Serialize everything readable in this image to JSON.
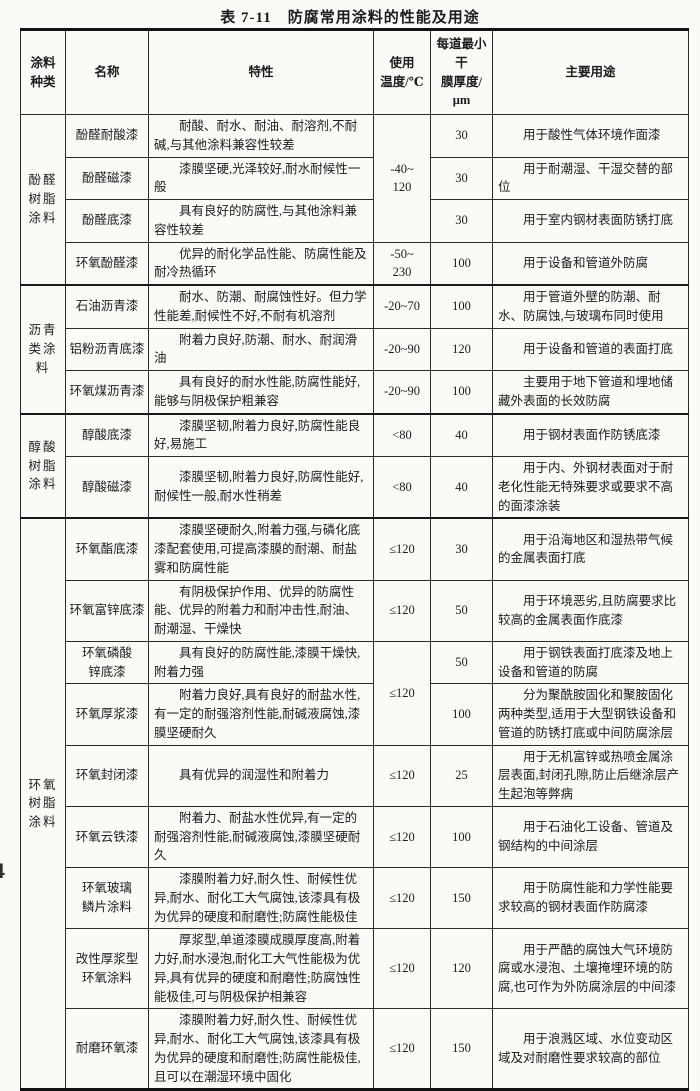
{
  "page": {
    "title": "表 7-11　防腐常用涂料的性能及用途",
    "page_artifact": "4"
  },
  "table": {
    "columns": [
      "涂料\n种类",
      "名称",
      "特性",
      "使用\n温度/℃",
      "每道最小干\n膜厚度/μm",
      "主要用途"
    ],
    "rows": [
      {
        "category": "酚醛\n树脂\n涂料",
        "category_span": 4,
        "name": "酚醛耐酸漆",
        "trait": "耐酸、耐水、耐油、耐溶剂,不耐碱,与其他涂料兼容性较差",
        "temp": "-40~\n120",
        "temp_span": 3,
        "thickness": "30",
        "use": "用于酸性气体环境作面漆"
      },
      {
        "name": "酚醛磁漆",
        "trait": "漆膜坚硬,光泽较好,耐水耐候性一般",
        "thickness": "30",
        "use": "用于耐潮湿、干湿交替的部位"
      },
      {
        "name": "酚醛底漆",
        "trait": "具有良好的防腐性,与其他涂料兼容性较差",
        "thickness": "30",
        "use": "用于室内钢材表面防锈打底"
      },
      {
        "name": "环氧酚醛漆",
        "trait": "优异的耐化学品性能、防腐性能及耐冷热循环",
        "temp": "-50~\n230",
        "temp_span": 1,
        "thickness": "100",
        "use": "用于设备和管道外防腐"
      },
      {
        "category": "沥青\n类涂\n料",
        "category_span": 3,
        "name": "石油沥青漆",
        "trait": "耐水、防潮、耐腐蚀性好。但力学性能差,耐候性不好,不耐有机溶剂",
        "temp": "-20~70",
        "temp_span": 1,
        "thickness": "100",
        "use": "用于管道外壁的防潮、耐水、防腐蚀,与玻璃布同时使用"
      },
      {
        "name": "铝粉沥青底漆",
        "trait": "附着力良好,防潮、耐水、耐润滑油",
        "temp": "-20~90",
        "temp_span": 1,
        "thickness": "120",
        "use": "用于设备和管道的表面打底"
      },
      {
        "name": "环氧煤沥青漆",
        "trait": "具有良好的耐水性能,防腐性能好,能够与阴极保护粗兼容",
        "temp": "-20~90",
        "temp_span": 1,
        "thickness": "100",
        "use": "主要用于地下管道和埋地储藏外表面的长效防腐"
      },
      {
        "category": "醇酸\n树脂\n涂料",
        "category_span": 2,
        "name": "醇酸底漆",
        "trait": "漆膜坚韧,附着力良好,防腐性能良好,易施工",
        "temp": "<80",
        "temp_span": 1,
        "thickness": "40",
        "use": "用于钢材表面作防锈底漆"
      },
      {
        "name": "醇酸磁漆",
        "trait": "漆膜坚韧,附着力良好,防腐性能好,耐候性一般,耐水性稍差",
        "temp": "<80",
        "temp_span": 1,
        "thickness": "40",
        "use": "用于内、外钢材表面对于耐老化性能无特殊要求或要求不高的面漆涂装"
      },
      {
        "category": "环氧\n树脂\n涂料",
        "category_span": 9,
        "name": "环氧酯底漆",
        "trait": "漆膜坚硬耐久,附着力强,与磷化底漆配套使用,可提高漆膜的耐潮、耐盐雾和防腐性能",
        "temp": "≤120",
        "temp_span": 1,
        "thickness": "30",
        "use": "用于沿海地区和湿热带气候的金属表面打底"
      },
      {
        "name": "环氧富锌底漆",
        "trait": "有阴极保护作用、优异的防腐性能、优异的附着力和耐冲击性,耐油、耐潮湿、干燥快",
        "temp": "≤120",
        "temp_span": 1,
        "thickness": "50",
        "use": "用于环境恶劣,且防腐要求比较高的金属表面作底漆"
      },
      {
        "name": "环氧磷酸\n锌底漆",
        "trait": "具有良好的防腐性能,漆膜干燥快,附着力强",
        "temp": "≤120",
        "temp_span": 2,
        "thickness": "50",
        "use": "用于钢铁表面打底漆及地上设备和管道的防腐"
      },
      {
        "name": "环氧厚浆漆",
        "trait": "附着力良好,具有良好的耐盐水性,有一定的耐强溶剂性能,耐碱液腐蚀,漆膜坚硬耐久",
        "thickness": "100",
        "use": "分为聚酰胺固化和聚胺固化两种类型,适用于大型钢铁设备和管道的防锈打底或中间防腐涂层"
      },
      {
        "name": "环氧封闭漆",
        "trait": "具有优异的润湿性和附着力",
        "temp": "≤120",
        "temp_span": 1,
        "thickness": "25",
        "use": "用于无机富锌或热喷金属涂层表面,封闭孔隙,防止后继涂层产生起泡等弊病"
      },
      {
        "name": "环氧云铁漆",
        "trait": "附着力、耐盐水性优异,有一定的耐强溶剂性能,耐碱液腐蚀,漆膜坚硬耐久",
        "temp": "≤120",
        "temp_span": 1,
        "thickness": "100",
        "use": "用于石油化工设备、管道及钢结构的中间涂层"
      },
      {
        "name": "环氧玻璃\n鳞片涂料",
        "trait": "漆膜附着力好,耐久性、耐候性优异,耐水、耐化工大气腐蚀,该漆具有极为优异的硬度和耐磨性;防腐性能极佳",
        "temp": "≤120",
        "temp_span": 1,
        "thickness": "150",
        "use": "用于防腐性能和力学性能要求较高的钢材表面作防腐漆"
      },
      {
        "name": "改性厚浆型\n环氧涂料",
        "trait": "厚浆型,单道漆膜成膜厚度高,附着力好,耐水浸泡,耐化工大气性能极为优异,具有优异的硬度和耐磨性;防腐蚀性能极佳,可与阴极保护相兼容",
        "temp": "≤120",
        "temp_span": 1,
        "thickness": "120",
        "use": "用于严酷的腐蚀大气环境防腐或水浸泡、土壤掩埋环境的防腐,也可作为外防腐涂层的中间漆"
      },
      {
        "name": "耐磨环氧漆",
        "trait": "漆膜附着力好,耐久性、耐候性优异,耐水、耐化工大气腐蚀,该漆具有极为优异的硬度和耐磨性;防腐性能极佳,且可以在潮湿环境中固化",
        "temp": "≤120",
        "temp_span": 1,
        "thickness": "150",
        "use": "用于浪溅区域、水位变动区域及对耐磨性要求较高的部位"
      }
    ]
  }
}
